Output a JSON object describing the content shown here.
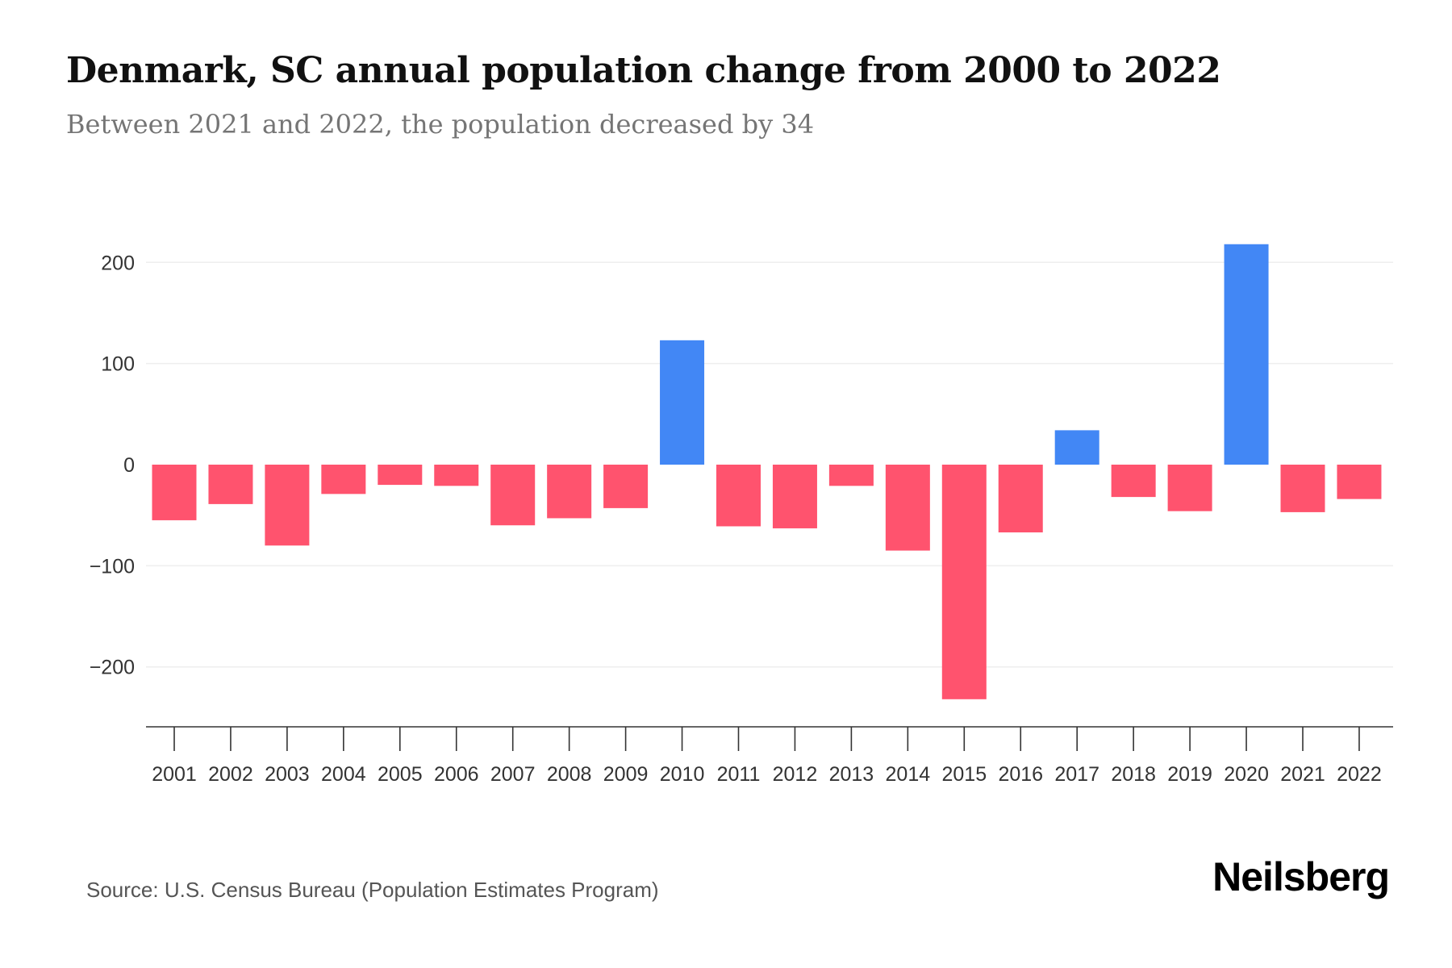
{
  "header": {
    "title": "Denmark, SC annual population change from 2000 to 2022",
    "subtitle": "Between 2021 and 2022, the population decreased by 34"
  },
  "footer": {
    "source": "Source: U.S. Census Bureau (Population Estimates Program)",
    "logo": "Neilsberg"
  },
  "colors": {
    "positive": "#4287f5",
    "negative": "#ff536e",
    "gridline": "#eeeeee",
    "axis": "#333333",
    "tick_label": "#333333"
  },
  "chart_data": {
    "type": "bar",
    "title": "Denmark, SC annual population change from 2000 to 2022",
    "subtitle": "Between 2021 and 2022, the population decreased by 34",
    "xlabel": "",
    "ylabel": "",
    "categories": [
      "2001",
      "2002",
      "2003",
      "2004",
      "2005",
      "2006",
      "2007",
      "2008",
      "2009",
      "2010",
      "2011",
      "2012",
      "2013",
      "2014",
      "2015",
      "2016",
      "2017",
      "2018",
      "2019",
      "2020",
      "2021",
      "2022"
    ],
    "values": [
      -55,
      -39,
      -80,
      -29,
      -20,
      -21,
      -60,
      -53,
      -43,
      123,
      -61,
      -63,
      -21,
      -85,
      -232,
      -67,
      34,
      -32,
      -46,
      218,
      -47,
      -34
    ],
    "yticks": [
      200,
      100,
      0,
      -100,
      -200
    ],
    "ytick_labels": [
      "200",
      "100",
      "0",
      "−100",
      "−200"
    ],
    "ylim": [
      -258,
      236
    ],
    "grid": true,
    "legend": "none",
    "color_rule": "positive values blue, negative values red"
  }
}
